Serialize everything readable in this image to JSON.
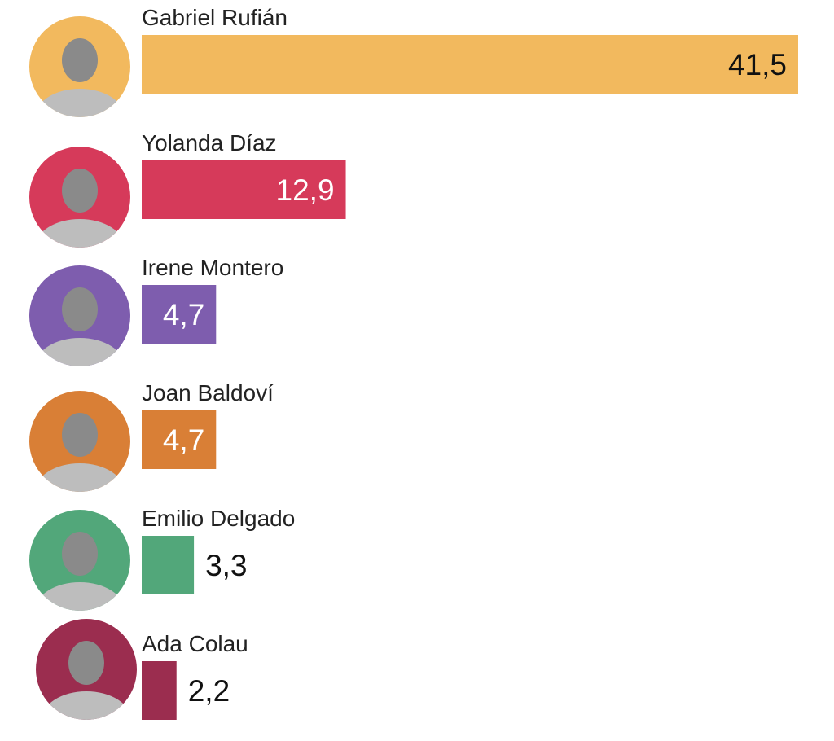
{
  "chart_data": {
    "type": "bar",
    "orientation": "horizontal",
    "categories": [
      "Gabriel Rufián",
      "Yolanda Díaz",
      "Irene Montero",
      "Joan Baldoví",
      "Emilio Delgado",
      "Ada Colau"
    ],
    "values": [
      41.5,
      12.9,
      4.7,
      4.7,
      3.3,
      2.2
    ],
    "value_labels": [
      "41,5",
      "12,9",
      "4,7",
      "4,7",
      "3,3",
      "2,2"
    ],
    "colors": [
      "#F2B95E",
      "#D63A5A",
      "#7E5DAE",
      "#D97F36",
      "#52A77A",
      "#9B2D4F"
    ],
    "label_colors": [
      "#111111",
      "#ffffff",
      "#ffffff",
      "#ffffff",
      "#111111",
      "#111111"
    ],
    "label_inside": [
      true,
      true,
      true,
      true,
      false,
      false
    ],
    "avatars": "portrait photo in colored circle",
    "grid": false,
    "title": "",
    "xlabel": "",
    "ylabel": ""
  }
}
